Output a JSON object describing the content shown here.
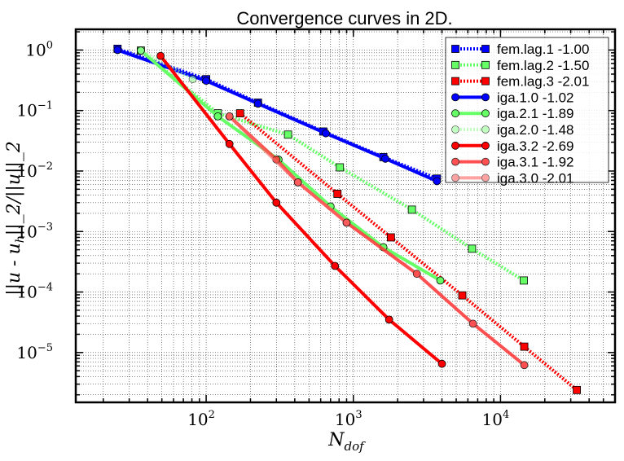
{
  "chart_data": {
    "type": "line",
    "title": "Convergence curves in 2D.",
    "xlabel": "N_dof",
    "ylabel": "||u - u_h||_2/||u||_2",
    "xscale": "log",
    "yscale": "log",
    "xlim": [
      13,
      60000
    ],
    "ylim": [
      1.5e-06,
      2.2
    ],
    "grid": true,
    "legend_position": "top-right",
    "x_ticks": [
      {
        "value": 100,
        "base": "10",
        "exp": "2"
      },
      {
        "value": 1000,
        "base": "10",
        "exp": "3"
      },
      {
        "value": 10000,
        "base": "10",
        "exp": "4"
      }
    ],
    "y_ticks": [
      {
        "value": 1,
        "base": "10",
        "exp": "0"
      },
      {
        "value": 0.1,
        "base": "10",
        "exp": "−1"
      },
      {
        "value": 0.01,
        "base": "10",
        "exp": "−2"
      },
      {
        "value": 0.001,
        "base": "10",
        "exp": "−3"
      },
      {
        "value": 0.0001,
        "base": "10",
        "exp": "−4"
      },
      {
        "value": 1e-05,
        "base": "10",
        "exp": "−5"
      }
    ],
    "series": [
      {
        "name": "fem.lag.1 -1.00",
        "color": "#0000ff",
        "style": "dotted",
        "marker": "square",
        "alpha": 1,
        "x": [
          25,
          100,
          225,
          625,
          1600,
          3700
        ],
        "y": [
          1.05,
          0.33,
          0.135,
          0.045,
          0.017,
          0.0075
        ]
      },
      {
        "name": "fem.lag.2 -1.50",
        "color": "#66ff66",
        "style": "dotted",
        "marker": "square",
        "alpha": 1,
        "x": [
          36,
          120,
          360,
          810,
          2500,
          6400,
          14400
        ],
        "y": [
          0.98,
          0.09,
          0.04,
          0.0115,
          0.0023,
          0.00052,
          0.000155
        ]
      },
      {
        "name": "fem.lag.3 -2.01",
        "color": "#ff0000",
        "style": "dotted",
        "marker": "square",
        "alpha": 1,
        "x": [
          170,
          780,
          1800,
          5500,
          14500,
          33000
        ],
        "y": [
          0.09,
          0.0042,
          0.0008,
          8.8e-05,
          1.25e-05,
          2.4e-06
        ]
      },
      {
        "name": "iga.1.0 -1.02",
        "color": "#0000ff",
        "style": "solid",
        "marker": "circle",
        "alpha": 1,
        "x": [
          25,
          100,
          225,
          650,
          1650,
          3700
        ],
        "y": [
          1.0,
          0.31,
          0.13,
          0.042,
          0.016,
          0.0068
        ]
      },
      {
        "name": "iga.2.1 -1.89",
        "color": "#66ff66",
        "style": "solid",
        "marker": "circle",
        "alpha": 1,
        "x": [
          36,
          120,
          310,
          700,
          1600,
          3900
        ],
        "y": [
          0.98,
          0.08,
          0.0155,
          0.0026,
          0.00055,
          0.000155
        ]
      },
      {
        "name": "iga.2.0 -1.48",
        "color": "#99ff99",
        "style": "dotted",
        "marker": "circle",
        "alpha": 0.6,
        "x": [
          36,
          81
        ],
        "y": [
          0.98,
          0.33
        ]
      },
      {
        "name": "iga.3.2 -2.69",
        "color": "#ff0000",
        "style": "solid",
        "marker": "circle",
        "alpha": 1,
        "x": [
          49,
          144,
          300,
          750,
          1750,
          4000
        ],
        "y": [
          0.8,
          0.028,
          0.003,
          0.00027,
          3.5e-05,
          6.5e-06
        ]
      },
      {
        "name": "iga.3.1 -1.92",
        "color": "#ff3333",
        "style": "solid",
        "marker": "circle",
        "alpha": 0.85,
        "x": [
          144,
          300,
          420,
          900,
          2700,
          6500,
          14500
        ],
        "y": [
          0.08,
          0.0155,
          0.0065,
          0.0014,
          0.0002,
          3e-05,
          6.2e-06
        ]
      },
      {
        "name": "iga.3.0 -2.01",
        "color": "#ff6666",
        "style": "solid",
        "marker": "circle",
        "alpha": 0.6,
        "x": [
          144,
          420,
          900
        ],
        "y": [
          0.08,
          0.0065,
          0.0014
        ]
      }
    ]
  }
}
